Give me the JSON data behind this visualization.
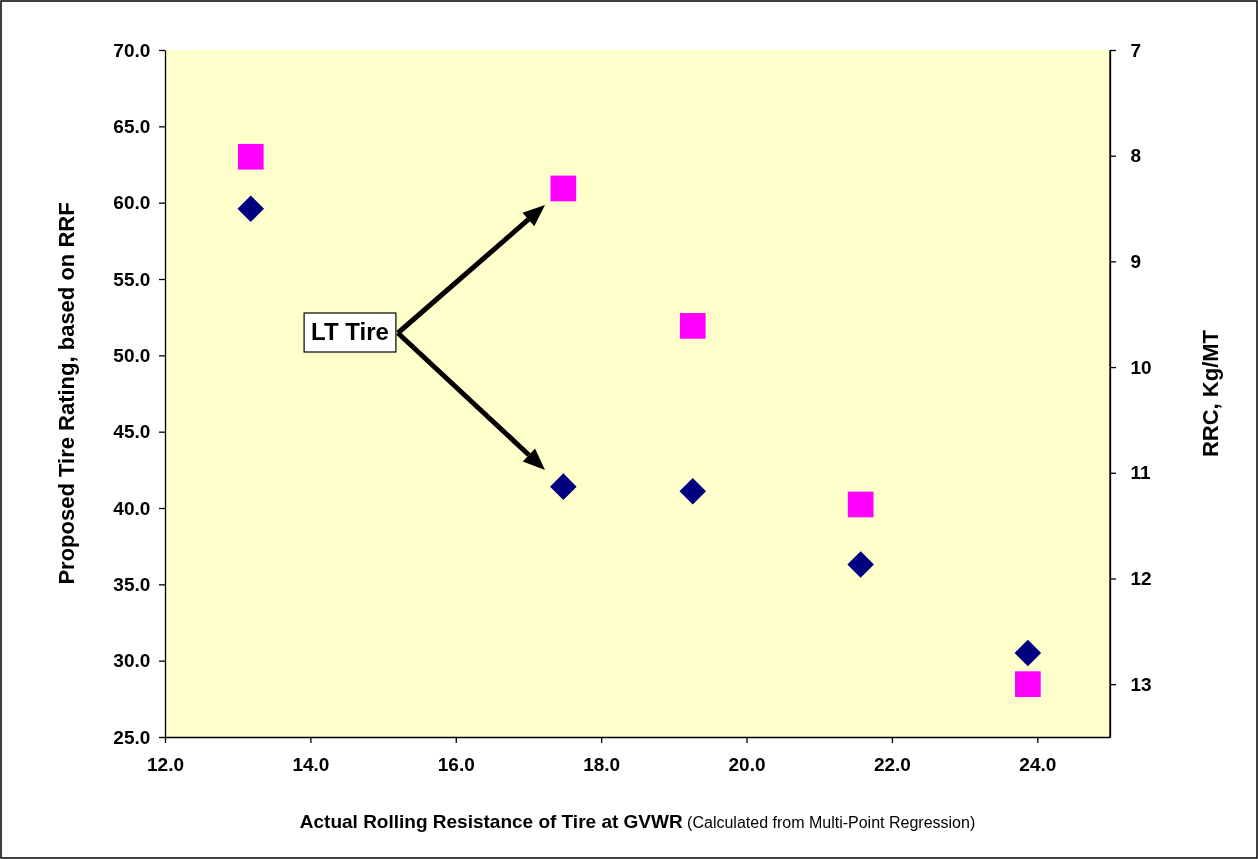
{
  "chart_data": {
    "type": "scatter",
    "xlabel": "Actual Rolling Resistance of Tire at GVWR (Calculated from Multi-Point Regression)",
    "ylabel": "Proposed Tire Rating, based on RRF",
    "y2label": "RRC, Kg/MT",
    "x": [
      13.18,
      17.48,
      19.26,
      21.57,
      23.87
    ],
    "series": [
      {
        "color": "#000080",
        "marker": "diamond",
        "values": [
          59.6,
          41.4,
          41.1,
          36.3,
          30.5
        ]
      },
      {
        "color": "#ff00ff",
        "marker": "square",
        "axis": "y2",
        "values": [
          8.01,
          8.31,
          9.61,
          11.3,
          13.0
        ]
      }
    ],
    "xlim": [
      12,
      25
    ],
    "xticks": [
      {
        "value": 12,
        "label": "12.0"
      },
      {
        "value": 14,
        "label": "14.0"
      },
      {
        "value": 16,
        "label": "16.0"
      },
      {
        "value": 18,
        "label": "18.0"
      },
      {
        "value": 20,
        "label": "20.0"
      },
      {
        "value": 22,
        "label": "22.0"
      },
      {
        "value": 24,
        "label": "24.0"
      }
    ],
    "ylim": [
      25,
      70
    ],
    "yticks": [
      {
        "value": 25,
        "label": "25.0"
      },
      {
        "value": 30,
        "label": "30.0"
      },
      {
        "value": 35,
        "label": "35.0"
      },
      {
        "value": 40,
        "label": "40.0"
      },
      {
        "value": 45,
        "label": "45.0"
      },
      {
        "value": 50,
        "label": "50.0"
      },
      {
        "value": 55,
        "label": "55.0"
      },
      {
        "value": 60,
        "label": "60.0"
      },
      {
        "value": 65,
        "label": "65.0"
      },
      {
        "value": 70,
        "label": "70.0"
      }
    ],
    "y2lim": [
      13.5,
      7
    ],
    "y2ticks": [
      7,
      8,
      9,
      10,
      11,
      12,
      13
    ],
    "annotations": [
      "LT Tire"
    ],
    "grid": false
  }
}
